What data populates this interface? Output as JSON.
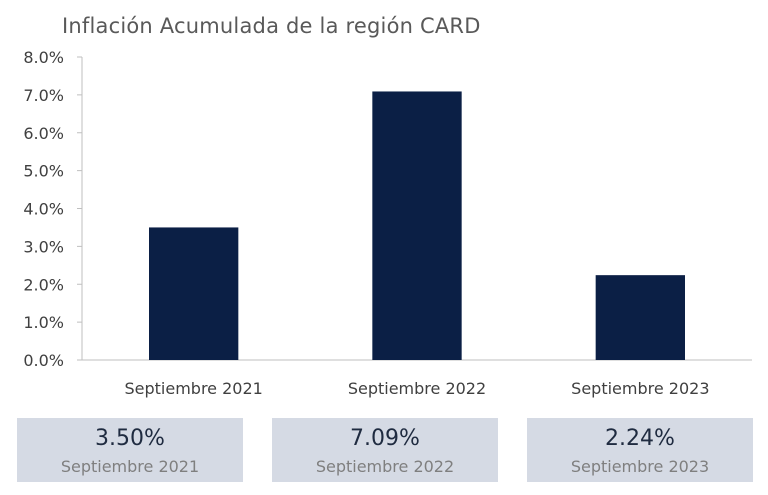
{
  "chart_data": {
    "type": "bar",
    "title": "Inflación Acumulada de la región CARD",
    "categories": [
      "Septiembre 2021",
      "Septiembre 2022",
      "Septiembre 2023"
    ],
    "values": [
      3.5,
      7.09,
      2.24
    ],
    "unit": "%",
    "ylim": [
      0,
      8
    ],
    "yticks": [
      "0.0%",
      "1.0%",
      "2.0%",
      "3.0%",
      "4.0%",
      "5.0%",
      "6.0%",
      "7.0%",
      "8.0%"
    ],
    "grid": false,
    "bar_color": "#0b1f45"
  },
  "cards": [
    {
      "value": "3.50%",
      "label": "Septiembre 2021"
    },
    {
      "value": "7.09%",
      "label": "Septiembre 2022"
    },
    {
      "value": "2.24%",
      "label": "Septiembre 2023"
    }
  ]
}
